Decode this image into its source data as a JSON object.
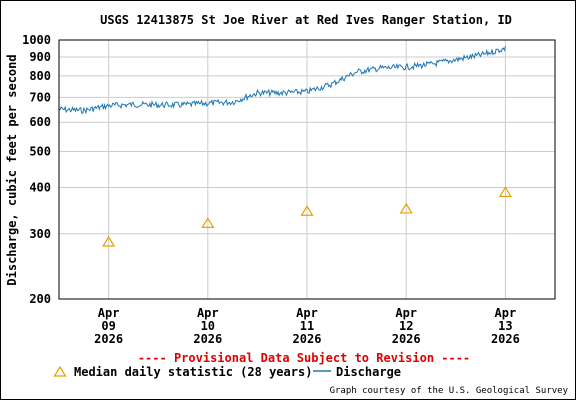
{
  "chart_data": {
    "type": "line",
    "title": "USGS 12413875 St Joe River at Red Ives Ranger Station, ID",
    "ylabel": "Discharge, cubic feet per second",
    "xlabel": "",
    "yscale": "log",
    "ylim": [
      200,
      1000
    ],
    "yticks": [
      200,
      300,
      400,
      500,
      600,
      700,
      800,
      900,
      1000
    ],
    "xlim": [
      "2026-04-08T12:00",
      "2026-04-13T12:00"
    ],
    "xticks": [
      {
        "date": "2026-04-09",
        "month": "Apr",
        "day": "09",
        "year": "2026"
      },
      {
        "date": "2026-04-10",
        "month": "Apr",
        "day": "10",
        "year": "2026"
      },
      {
        "date": "2026-04-11",
        "month": "Apr",
        "day": "11",
        "year": "2026"
      },
      {
        "date": "2026-04-12",
        "month": "Apr",
        "day": "12",
        "year": "2026"
      },
      {
        "date": "2026-04-13",
        "month": "Apr",
        "day": "13",
        "year": "2026"
      }
    ],
    "grid": true,
    "series": [
      {
        "name": "Discharge",
        "color": "#1f77b4",
        "x": [
          "2026-04-08T12:00",
          "2026-04-08T18:00",
          "2026-04-09T00:00",
          "2026-04-09T06:00",
          "2026-04-09T12:00",
          "2026-04-09T18:00",
          "2026-04-10T00:00",
          "2026-04-10T06:00",
          "2026-04-10T12:00",
          "2026-04-10T18:00",
          "2026-04-11T00:00",
          "2026-04-11T06:00",
          "2026-04-11T12:00",
          "2026-04-11T18:00",
          "2026-04-12T00:00",
          "2026-04-12T06:00",
          "2026-04-12T12:00",
          "2026-04-12T18:00",
          "2026-04-13T00:00"
        ],
        "values": [
          650,
          645,
          665,
          670,
          668,
          668,
          675,
          680,
          720,
          720,
          725,
          760,
          820,
          840,
          845,
          860,
          885,
          910,
          950
        ]
      },
      {
        "name": "Median daily statistic (28 years)",
        "color": "#e8a000",
        "marker": "triangle",
        "x": [
          "2026-04-09T00:00",
          "2026-04-10T00:00",
          "2026-04-11T00:00",
          "2026-04-12T00:00",
          "2026-04-13T00:00"
        ],
        "values": [
          285,
          320,
          345,
          350,
          388
        ]
      }
    ],
    "legend_position": "bottom",
    "annotations": {
      "provisional": "---- Provisional Data Subject to Revision ----",
      "courtesy": "Graph courtesy of the U.S. Geological Survey"
    }
  },
  "colors": {
    "provisional": "#e00000",
    "grid": "#cccccc",
    "axis": "#000000"
  }
}
